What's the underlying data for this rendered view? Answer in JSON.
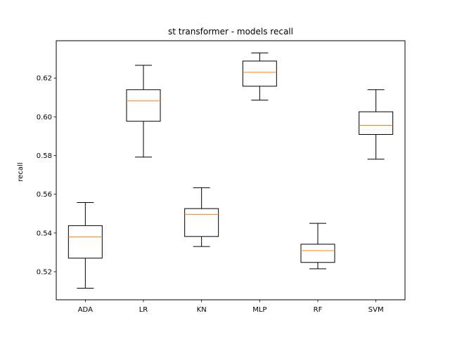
{
  "chart_data": {
    "type": "boxplot",
    "title": "st transformer - models recall",
    "xlabel": "",
    "ylabel": "recall",
    "ylim": [
      0.5055,
      0.6393
    ],
    "yticks": [
      0.52,
      0.54,
      0.56,
      0.58,
      0.6,
      0.62
    ],
    "ytick_labels": [
      "0.52",
      "0.54",
      "0.56",
      "0.58",
      "0.60",
      "0.62"
    ],
    "categories": [
      "ADA",
      "LR",
      "KN",
      "MLP",
      "RF",
      "SVM"
    ],
    "boxes": [
      {
        "name": "ADA",
        "whislo": 0.5115,
        "q1": 0.527,
        "med": 0.538,
        "q3": 0.5438,
        "whishi": 0.5557
      },
      {
        "name": "LR",
        "whislo": 0.5792,
        "q1": 0.5977,
        "med": 0.6082,
        "q3": 0.614,
        "whishi": 0.6266
      },
      {
        "name": "KN",
        "whislo": 0.533,
        "q1": 0.5382,
        "med": 0.5496,
        "q3": 0.5526,
        "whishi": 0.5634
      },
      {
        "name": "MLP",
        "whislo": 0.6086,
        "q1": 0.6158,
        "med": 0.623,
        "q3": 0.6288,
        "whishi": 0.633
      },
      {
        "name": "RF",
        "whislo": 0.5215,
        "q1": 0.5248,
        "med": 0.5309,
        "q3": 0.5342,
        "whishi": 0.545
      },
      {
        "name": "SVM",
        "whislo": 0.5781,
        "q1": 0.5909,
        "med": 0.5956,
        "q3": 0.6026,
        "whishi": 0.614
      }
    ],
    "colors": {
      "box": "#000000",
      "median": "#ff7f0e"
    }
  }
}
